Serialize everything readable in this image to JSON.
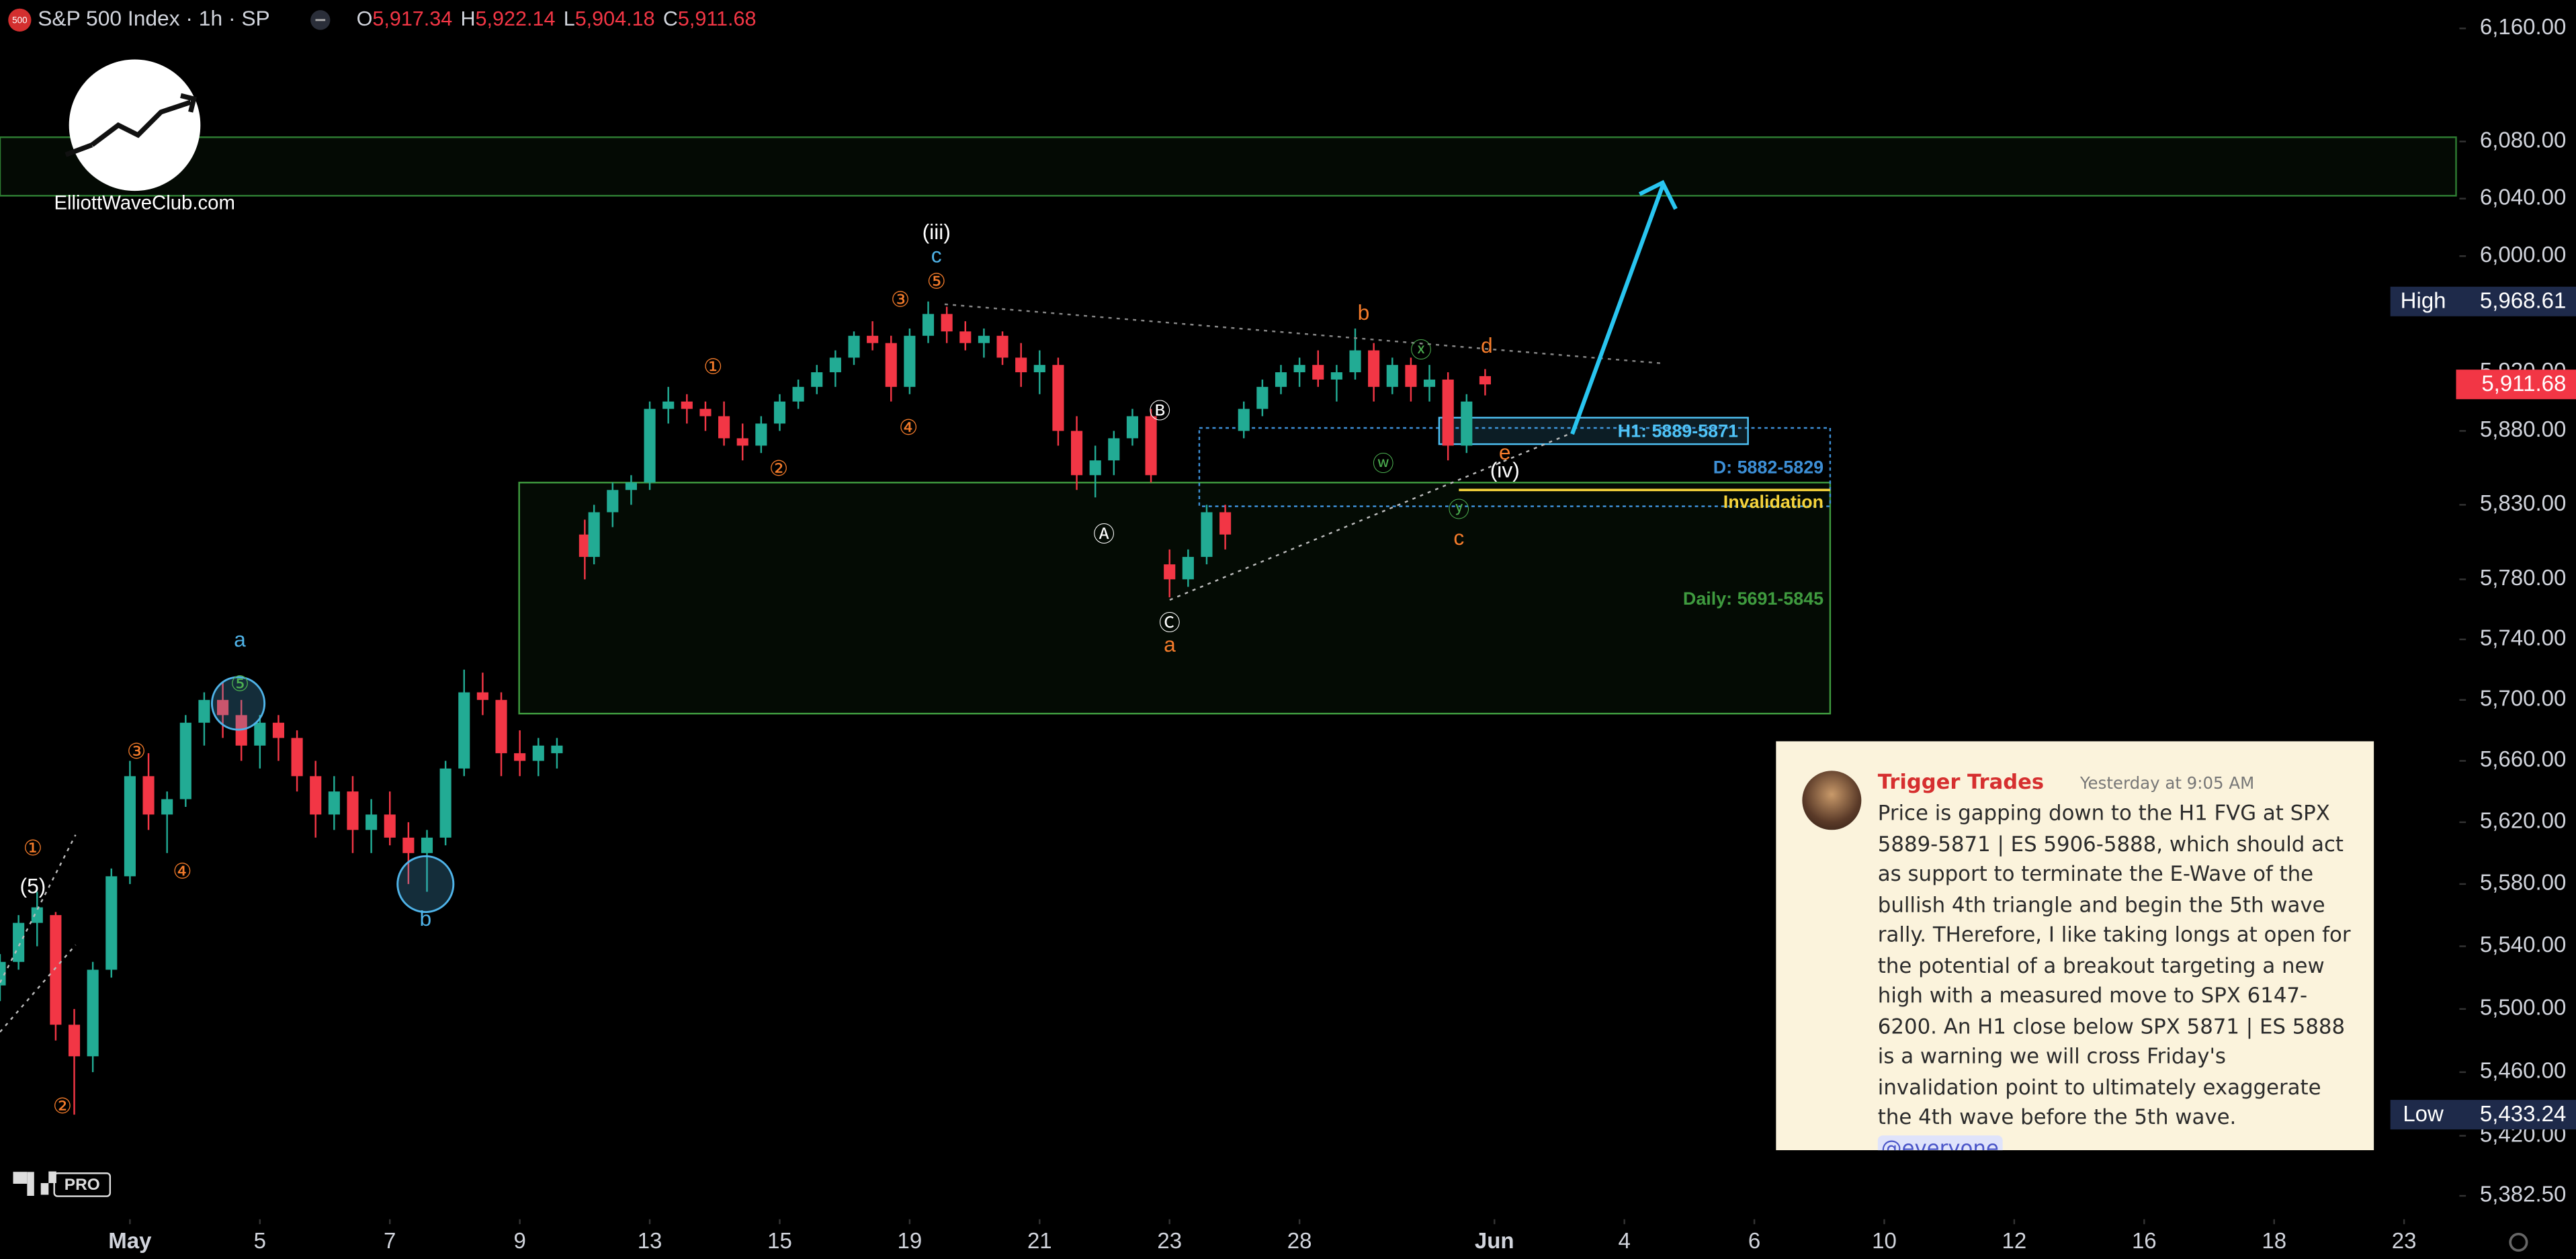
{
  "chart_data": {
    "type": "candlestick",
    "title": "S&P 500 Index · 1h · SP",
    "symbol_badge": "500",
    "ohlc_header": [
      {
        "key": "O",
        "value": "5,917.34"
      },
      {
        "key": "H",
        "value": "5,922.14"
      },
      {
        "key": "L",
        "value": "5,904.18"
      },
      {
        "key": "C",
        "value": "5,911.68"
      }
    ],
    "log_scale": true,
    "up_color": "#22ab94",
    "down_color": "#f23645",
    "xlim": [
      0,
      264.6
    ],
    "ylim": [
      5370,
      6180
    ],
    "xticks": [
      {
        "value": 14,
        "label": "May"
      },
      {
        "value": 28,
        "label": "5"
      },
      {
        "value": 42,
        "label": "7"
      },
      {
        "value": 56,
        "label": "9"
      },
      {
        "value": 70,
        "label": "13"
      },
      {
        "value": 84,
        "label": "15"
      },
      {
        "value": 98,
        "label": "19"
      },
      {
        "value": 112,
        "label": "21"
      },
      {
        "value": 126,
        "label": "23"
      },
      {
        "value": 140,
        "label": "28"
      },
      {
        "value": 161,
        "label": "Jun"
      },
      {
        "value": 175,
        "label": "4"
      },
      {
        "value": 189,
        "label": "6"
      },
      {
        "value": 203,
        "label": "10"
      },
      {
        "value": 217,
        "label": "12"
      },
      {
        "value": 231,
        "label": "16"
      },
      {
        "value": 245,
        "label": "18"
      },
      {
        "value": 259,
        "label": "23"
      }
    ],
    "yticks": [
      {
        "value": 6160,
        "label": "6,160.00"
      },
      {
        "value": 6080,
        "label": "6,080.00"
      },
      {
        "value": 6040,
        "label": "6,040.00"
      },
      {
        "value": 6000,
        "label": "6,000.00"
      },
      {
        "value": 5920,
        "label": "5,920.00"
      },
      {
        "value": 5880,
        "label": "5,880.00"
      },
      {
        "value": 5830,
        "label": "5,830.00"
      },
      {
        "value": 5780,
        "label": "5,780.00"
      },
      {
        "value": 5740,
        "label": "5,740.00"
      },
      {
        "value": 5700,
        "label": "5,700.00"
      },
      {
        "value": 5660,
        "label": "5,660.00"
      },
      {
        "value": 5620,
        "label": "5,620.00"
      },
      {
        "value": 5580,
        "label": "5,580.00"
      },
      {
        "value": 5540,
        "label": "5,540.00"
      },
      {
        "value": 5500,
        "label": "5,500.00"
      },
      {
        "value": 5460,
        "label": "5,460.00"
      },
      {
        "value": 5420,
        "label": "5,420.00"
      },
      {
        "value": 5382.5,
        "label": "5,382.50"
      }
    ],
    "candles": {
      "x": [
        0,
        2,
        4,
        6,
        8,
        10,
        12,
        14,
        16,
        18,
        20,
        22,
        24,
        26,
        28,
        30,
        32,
        34,
        36,
        38,
        40,
        42,
        44,
        46,
        48,
        50,
        52,
        54,
        56,
        58,
        60,
        63,
        64,
        66,
        68,
        70,
        72,
        74,
        76,
        78,
        80,
        82,
        84,
        86,
        88,
        90,
        92,
        94,
        96,
        98,
        100,
        102,
        104,
        106,
        108,
        110,
        112,
        114,
        116,
        118,
        120,
        122,
        124,
        126,
        128,
        130,
        132,
        134,
        136,
        138,
        140,
        142,
        144,
        146,
        148,
        150,
        152,
        154,
        156,
        158,
        160
      ],
      "open": [
        5515,
        5530,
        5555,
        5560,
        5490,
        5470,
        5525,
        5585,
        5650,
        5625,
        5635,
        5685,
        5700,
        5690,
        5670,
        5685,
        5675,
        5650,
        5625,
        5640,
        5615,
        5625,
        5610,
        5600,
        5610,
        5655,
        5705,
        5700,
        5665,
        5660,
        5665,
        5810,
        5795,
        5825,
        5840,
        5845,
        5895,
        5900,
        5895,
        5890,
        5875,
        5870,
        5885,
        5900,
        5910,
        5920,
        5930,
        5945,
        5940,
        5910,
        5945,
        5960,
        5948,
        5940,
        5945,
        5930,
        5920,
        5925,
        5880,
        5850,
        5860,
        5875,
        5890,
        5790,
        5780,
        5795,
        5825,
        5880,
        5895,
        5910,
        5920,
        5925,
        5915,
        5920,
        5935,
        5910,
        5925,
        5910,
        5915,
        5870,
        5917.34
      ],
      "high": [
        5535,
        5560,
        5575,
        5562,
        5500,
        5530,
        5590,
        5660,
        5665,
        5640,
        5690,
        5705,
        5712,
        5700,
        5690,
        5690,
        5680,
        5660,
        5650,
        5650,
        5635,
        5640,
        5620,
        5615,
        5660,
        5720,
        5718,
        5705,
        5680,
        5675,
        5675,
        5820,
        5830,
        5845,
        5850,
        5900,
        5910,
        5905,
        5900,
        5900,
        5885,
        5890,
        5905,
        5915,
        5925,
        5935,
        5948,
        5955,
        5945,
        5950,
        5968.61,
        5965,
        5955,
        5950,
        5948,
        5940,
        5935,
        5930,
        5890,
        5870,
        5880,
        5895,
        5895,
        5800,
        5800,
        5830,
        5830,
        5900,
        5915,
        5925,
        5930,
        5935,
        5925,
        5950,
        5940,
        5930,
        5930,
        5925,
        5920,
        5905,
        5922.14
      ],
      "low": [
        5505,
        5525,
        5540,
        5480,
        5433.24,
        5460,
        5520,
        5580,
        5615,
        5600,
        5630,
        5670,
        5675,
        5660,
        5655,
        5660,
        5640,
        5610,
        5615,
        5600,
        5600,
        5605,
        5580,
        5575,
        5605,
        5650,
        5690,
        5650,
        5650,
        5650,
        5655,
        5780,
        5790,
        5815,
        5830,
        5840,
        5885,
        5885,
        5880,
        5870,
        5860,
        5865,
        5880,
        5895,
        5905,
        5910,
        5925,
        5935,
        5900,
        5905,
        5940,
        5940,
        5935,
        5930,
        5925,
        5910,
        5905,
        5870,
        5840,
        5835,
        5850,
        5870,
        5845,
        5768,
        5775,
        5790,
        5800,
        5875,
        5890,
        5905,
        5910,
        5910,
        5900,
        5915,
        5900,
        5905,
        5900,
        5900,
        5860,
        5865,
        5904.18
      ],
      "close": [
        5530,
        5555,
        5565,
        5490,
        5470,
        5525,
        5585,
        5650,
        5625,
        5635,
        5685,
        5700,
        5690,
        5670,
        5685,
        5675,
        5650,
        5625,
        5640,
        5615,
        5625,
        5610,
        5600,
        5610,
        5655,
        5705,
        5700,
        5665,
        5660,
        5670,
        5670,
        5795,
        5825,
        5840,
        5845,
        5895,
        5900,
        5895,
        5890,
        5875,
        5870,
        5885,
        5900,
        5910,
        5920,
        5930,
        5945,
        5940,
        5910,
        5945,
        5960,
        5948,
        5940,
        5945,
        5930,
        5920,
        5925,
        5880,
        5850,
        5860,
        5875,
        5890,
        5850,
        5780,
        5795,
        5825,
        5810,
        5895,
        5910,
        5920,
        5925,
        5915,
        5920,
        5935,
        5910,
        5925,
        5910,
        5915,
        5870,
        5900,
        5911.68
      ]
    },
    "zones": [
      {
        "low": 6042,
        "high": 6083,
        "color": "#2e7d32"
      },
      {
        "label": "Daily: 5691-5845",
        "low": 5691,
        "high": 5845,
        "color": "#3f9b3f"
      },
      {
        "label": "D: 5882-5829",
        "low": 5829,
        "high": 5882,
        "color": "#3d8fd6"
      },
      {
        "label": "H1: 5889-5871",
        "low": 5871,
        "high": 5889,
        "color": "#4fc3f7"
      }
    ],
    "invalidation": {
      "label": "Invalidation",
      "value": 5840,
      "color": "#f5d33b"
    },
    "price_badges": [
      {
        "name": "High",
        "value": 5968.61,
        "value_label": "5,968.61"
      },
      {
        "value": 5911.68,
        "value_label": "5,911.68",
        "color": "#f23645"
      },
      {
        "name": "Low",
        "value": 5433.24,
        "value_label": "5,433.24"
      }
    ],
    "wave_labels": [
      {
        "text": "①",
        "color": "#f57c2b"
      },
      {
        "text": "(5)",
        "color": "#ffffff"
      },
      {
        "text": "②",
        "color": "#f57c2b"
      },
      {
        "text": "③",
        "color": "#f57c2b"
      },
      {
        "text": "④",
        "color": "#f57c2b"
      },
      {
        "text": "⑤",
        "color": "#4caf50"
      },
      {
        "text": "a",
        "color": "#4fb3e8"
      },
      {
        "text": "b",
        "color": "#4fb3e8"
      },
      {
        "text": "①",
        "color": "#f57c2b"
      },
      {
        "text": "②",
        "color": "#f57c2b"
      },
      {
        "text": "③",
        "color": "#f57c2b"
      },
      {
        "text": "④",
        "color": "#f57c2b"
      },
      {
        "text": "⑤",
        "color": "#f57c2b"
      },
      {
        "text": "c",
        "color": "#4fb3e8"
      },
      {
        "text": "(iii)",
        "color": "#ffffff"
      },
      {
        "text": "Ⓐ",
        "color": "#ffffff"
      },
      {
        "text": "Ⓑ",
        "color": "#ffffff"
      },
      {
        "text": "Ⓒ",
        "color": "#ffffff"
      },
      {
        "text": "a",
        "color": "#f57c2b"
      },
      {
        "text": "b",
        "color": "#f57c2b"
      },
      {
        "text": "ⓧ",
        "color": "#4caf50"
      },
      {
        "text": "d",
        "color": "#f57c2b"
      },
      {
        "text": "ⓦ",
        "color": "#4caf50"
      },
      {
        "text": "e",
        "color": "#f57c2b"
      },
      {
        "text": "(iv)",
        "color": "#ffffff"
      },
      {
        "text": "ⓨ",
        "color": "#4caf50"
      },
      {
        "text": "c",
        "color": "#f57c2b"
      }
    ]
  },
  "logo": {
    "site": "ElliottWaveClub.com"
  },
  "platform_badge": "PRO",
  "message": {
    "author": "Trigger Trades",
    "time": "Yesterday at 9:05 AM",
    "body": "Price is gapping down to the H1 FVG at SPX 5889-5871 | ES 5906-5888, which should act as support to terminate the E-Wave of the bullish 4th triangle and begin the 5th wave rally. THerefore, I like taking longs at open for the potential of a breakout targeting a new high with a measured move to SPX 6147-6200. An H1 close below SPX 5871 | ES 5888 is a warning we will cross Friday's invalidation point to ultimately exaggerate the 4th wave before the 5th wave.",
    "mention": "@everyone"
  }
}
